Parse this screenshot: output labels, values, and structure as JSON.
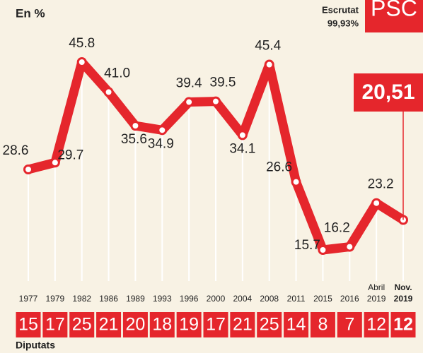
{
  "chart_data": {
    "type": "line",
    "subtitle": "En %",
    "scrutiny_label": "Escrutat",
    "scrutiny_value": "99,93%",
    "party": "PSC",
    "categories": [
      "1977",
      "1979",
      "1982",
      "1986",
      "1989",
      "1993",
      "1996",
      "2000",
      "2004",
      "2008",
      "2011",
      "2015",
      "2016",
      "Abril 2019",
      "Nov. 2019"
    ],
    "series": [
      {
        "name": "PSC",
        "color": "#e5262c",
        "values": [
          28.6,
          29.7,
          45.8,
          41.0,
          35.6,
          34.9,
          39.4,
          39.5,
          34.1,
          45.4,
          26.6,
          15.7,
          16.2,
          23.2,
          20.51
        ],
        "value_labels": [
          "28.6",
          "29.7",
          "45.8",
          "41.0",
          "35.6",
          "34.9",
          "39.4",
          "39.5",
          "34.1",
          "45.4",
          "26.6",
          "15.7",
          "16.2",
          "23.2",
          "20,51"
        ]
      }
    ],
    "seats_label": "Diputats",
    "seats": [
      15,
      17,
      25,
      21,
      20,
      18,
      19,
      17,
      21,
      25,
      14,
      8,
      7,
      12,
      12
    ]
  }
}
